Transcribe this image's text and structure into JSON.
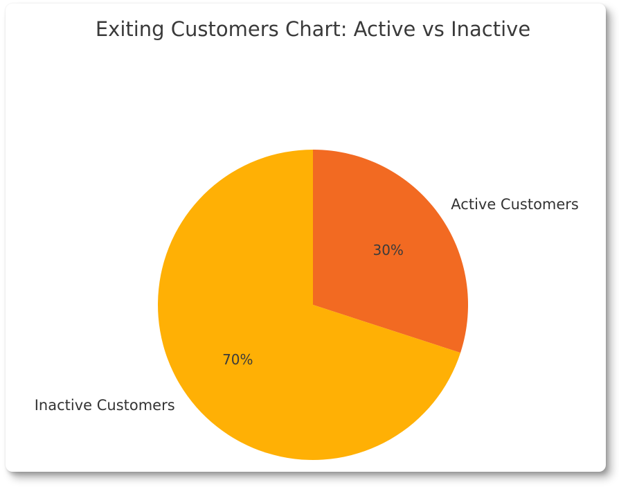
{
  "chart_data": {
    "type": "pie",
    "title": "Exiting Customers Chart: Active vs Inactive",
    "series": [
      {
        "label": "Active Customers",
        "value": 30,
        "display_pct": "30%",
        "color": "#F26A22"
      },
      {
        "label": "Inactive Customers",
        "value": 70,
        "display_pct": "70%",
        "color": "#FFB005"
      }
    ],
    "start_angle": 90,
    "direction": "clockwise",
    "legend": "none",
    "grid": "off",
    "title_color": "#3a3a3a",
    "label_color": "#333333",
    "pct_label_color": "#3b3b3b",
    "background_color": "#ffffff"
  }
}
